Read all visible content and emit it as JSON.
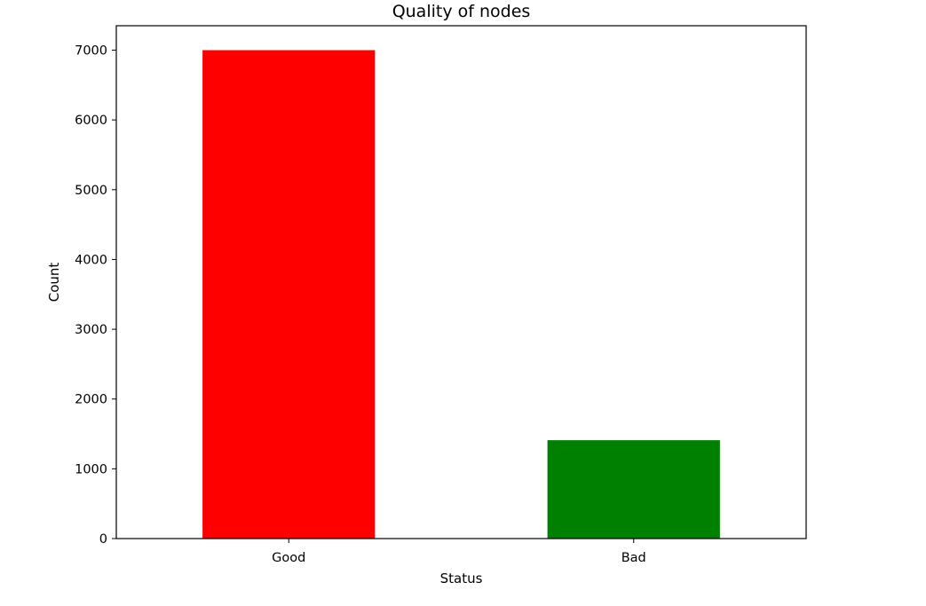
{
  "chart_data": {
    "type": "bar",
    "title": "Quality of nodes",
    "xlabel": "Status",
    "ylabel": "Count",
    "categories": [
      "Good",
      "Bad"
    ],
    "values": [
      7000,
      1410
    ],
    "colors": [
      "#ff0000",
      "#008000"
    ],
    "ylim": [
      0,
      7350
    ],
    "yticks": [
      0,
      1000,
      2000,
      3000,
      4000,
      5000,
      6000,
      7000
    ],
    "ytick_labels": [
      "0",
      "1000",
      "2000",
      "3000",
      "4000",
      "5000",
      "6000",
      "7000"
    ],
    "grid": false,
    "legend": null
  }
}
